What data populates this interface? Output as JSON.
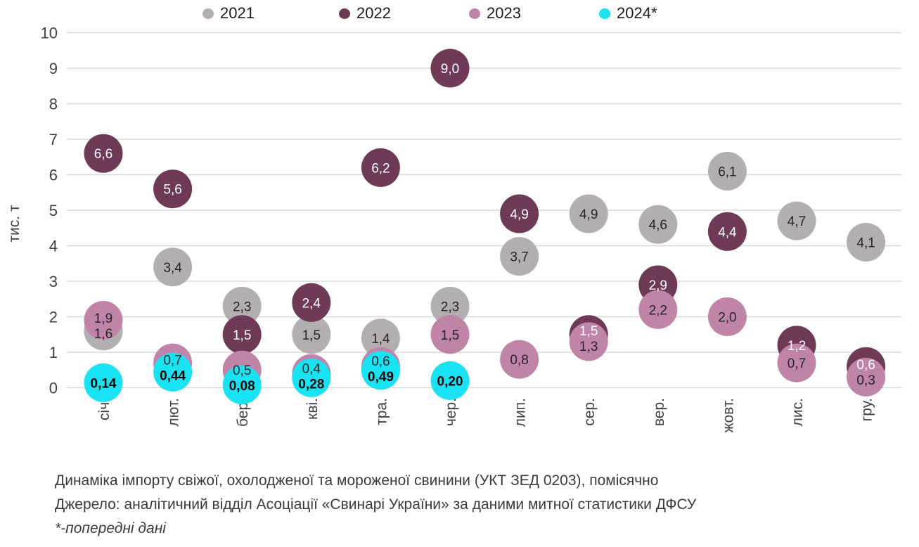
{
  "legend": {
    "items": [
      {
        "label": "2021",
        "color": "#b3aeb0"
      },
      {
        "label": "2022",
        "color": "#6e3a56"
      },
      {
        "label": "2023",
        "color": "#c084a8"
      },
      {
        "label": "2024*",
        "color": "#19e2f2"
      }
    ]
  },
  "y_axis": {
    "title": "тис. т",
    "ticks": [
      0,
      1,
      2,
      3,
      4,
      5,
      6,
      7,
      8,
      9,
      10
    ],
    "min": 0,
    "max": 10
  },
  "chart_data": {
    "type": "scatter",
    "title": "Динаміка імпорту свіжої, охолодженої та мороженої свинини (УКТ ЗЕД 0203), помісячно",
    "ylabel": "тис. т",
    "ylim": [
      0,
      10
    ],
    "grid": true,
    "legend_position": "top",
    "categories": [
      "січ.",
      "лют.",
      "бер.",
      "кві.",
      "тра.",
      "чер.",
      "лип.",
      "сер.",
      "вер.",
      "жовт.",
      "лис.",
      "гру."
    ],
    "series": [
      {
        "name": "2021",
        "color": "#b3aeb0",
        "label_color": "#262626",
        "bold": false,
        "values": [
          1.6,
          3.4,
          2.3,
          1.5,
          1.4,
          2.3,
          3.7,
          4.9,
          4.6,
          6.1,
          4.7,
          4.1
        ],
        "labels": [
          "1,6",
          "3,4",
          "2,3",
          "1,5",
          "1,4",
          "2,3",
          "3,7",
          "4,9",
          "4,6",
          "6,1",
          "4,7",
          "4,1"
        ]
      },
      {
        "name": "2022",
        "color": "#6e3a56",
        "label_color": "#ffffff",
        "bold": false,
        "values": [
          6.6,
          5.6,
          1.5,
          2.4,
          6.2,
          9.0,
          4.9,
          1.5,
          2.9,
          4.4,
          1.2,
          0.6
        ],
        "labels": [
          "6,6",
          "5,6",
          "1,5",
          "2,4",
          "6,2",
          "9,0",
          "4,9",
          "1,5",
          "2,9",
          "4,4",
          "1,2",
          "0,6"
        ]
      },
      {
        "name": "2023",
        "color": "#c084a8",
        "label_color": "#262626",
        "bold": false,
        "values": [
          1.9,
          0.7,
          0.5,
          0.4,
          0.6,
          1.5,
          0.8,
          1.3,
          2.2,
          2.0,
          0.7,
          0.3
        ],
        "labels": [
          "1,9",
          "0,7",
          "0,5",
          "0,4",
          "0,6",
          "1,5",
          "0,8",
          "1,3",
          "2,2",
          "2,0",
          "0,7",
          "0,3"
        ]
      },
      {
        "name": "2024*",
        "color": "#19e2f2",
        "label_color": "#000000",
        "bold": true,
        "values": [
          0.14,
          0.44,
          0.08,
          0.28,
          0.49,
          0.2,
          null,
          null,
          null,
          null,
          null,
          null
        ],
        "labels": [
          "0,14",
          "0,44",
          "0,08",
          "0,28",
          "0,49",
          "0,20",
          null,
          null,
          null,
          null,
          null,
          null
        ]
      }
    ]
  },
  "caption": {
    "line1": "Динаміка імпорту свіжої, охолодженої та мороженої свинини (УКТ ЗЕД 0203), помісячно",
    "line2": "Джерело: аналітичний відділ Асоціації «Свинарі України» за даними митної статистики ДФСУ",
    "line3": "*-попередні дані"
  }
}
